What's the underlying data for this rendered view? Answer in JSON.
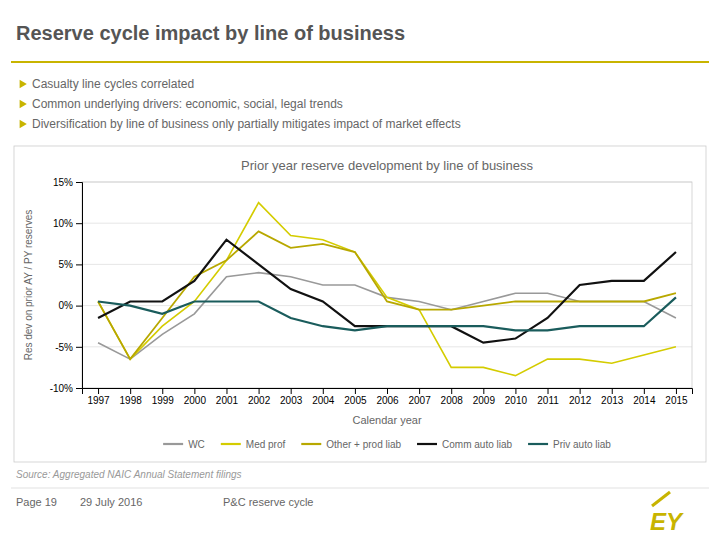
{
  "title": "Reserve cycle impact by line of business",
  "bullets": [
    "Casualty line cycles correlated",
    "Common underlying drivers: economic, social, legal trends",
    "Diversification by line of business only partially mitigates impact of market effects"
  ],
  "source": "Source: Aggregated NAIC Annual Statement filings",
  "footer": [
    "Page 19",
    "29 July 2016",
    "P&C reserve cycle"
  ],
  "logo": "EY",
  "chart_data": {
    "type": "line",
    "title": "Prior year reserve development by line of business",
    "x_label": "Calendar year",
    "y_label": "Res dev on prior AY / PY reserves",
    "x": [
      1997,
      1998,
      1999,
      2000,
      2001,
      2002,
      2003,
      2004,
      2005,
      2006,
      2007,
      2008,
      2009,
      2010,
      2011,
      2012,
      2013,
      2014,
      2015
    ],
    "series": [
      {
        "name": "WC",
        "color": "#999999",
        "values": [
          -4.5,
          -6.5,
          -3.5,
          -1.0,
          3.5,
          4.0,
          3.5,
          2.5,
          2.5,
          1.0,
          0.5,
          -0.5,
          0.5,
          1.5,
          1.5,
          0.5,
          0.5,
          0.5,
          -1.5
        ]
      },
      {
        "name": "Med prof",
        "color": "#d4cc00",
        "values": [
          0.5,
          -6.5,
          -2.5,
          0.5,
          5.5,
          12.5,
          8.5,
          8.0,
          6.5,
          1.0,
          -0.5,
          -7.5,
          -7.5,
          -8.5,
          -6.5,
          -6.5,
          -7.0,
          -6.0,
          -5.0
        ]
      },
      {
        "name": "Other + prod liab",
        "color": "#b8a800",
        "values": [
          0.5,
          -6.5,
          -1.5,
          3.5,
          5.5,
          9.0,
          7.0,
          7.5,
          6.5,
          0.5,
          -0.5,
          -0.5,
          0.0,
          0.5,
          0.5,
          0.5,
          0.5,
          0.5,
          1.5
        ]
      },
      {
        "name": "Comm auto liab",
        "color": "#111111",
        "values": [
          -1.5,
          0.5,
          0.5,
          3.0,
          8.0,
          5.0,
          2.0,
          0.5,
          -2.5,
          -2.5,
          -2.5,
          -2.5,
          -4.5,
          -4.0,
          -1.5,
          2.5,
          3.0,
          3.0,
          6.5
        ]
      },
      {
        "name": "Priv auto liab",
        "color": "#1a5c5c",
        "values": [
          0.5,
          0.0,
          -1.0,
          0.5,
          0.5,
          0.5,
          -1.5,
          -2.5,
          -3.0,
          -2.5,
          -2.5,
          -2.5,
          -2.5,
          -3.0,
          -3.0,
          -2.5,
          -2.5,
          -2.5,
          1.0
        ]
      }
    ],
    "xlim": [
      1996.5,
      2015.5
    ],
    "xticks": [
      1997,
      1998,
      1999,
      2000,
      2001,
      2002,
      2003,
      2004,
      2005,
      2006,
      2007,
      2008,
      2009,
      2010,
      2011,
      2012,
      2013,
      2014,
      2015
    ],
    "ylim": [
      -10,
      15
    ],
    "yticks": [
      {
        "value": -10,
        "label": "-10%"
      },
      {
        "value": -5,
        "label": "-5%"
      },
      {
        "value": 0,
        "label": "0%"
      },
      {
        "value": 5,
        "label": "5%"
      },
      {
        "value": 10,
        "label": "10%"
      },
      {
        "value": 15,
        "label": "15%"
      }
    ],
    "grid": true,
    "legend": "bottom"
  }
}
